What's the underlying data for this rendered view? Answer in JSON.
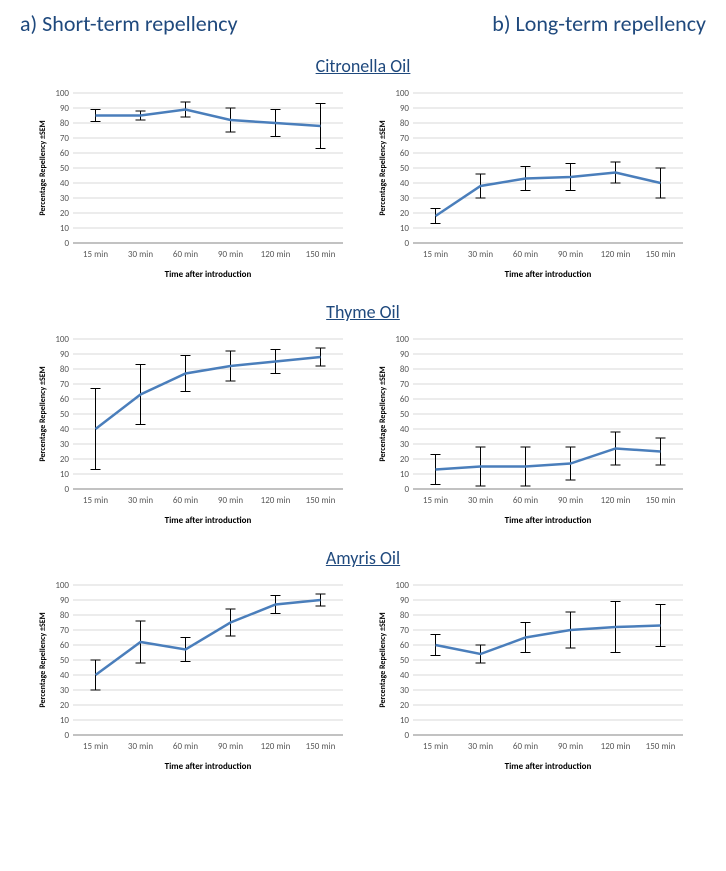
{
  "columns": {
    "a": "a) Short-term repellency",
    "b": "b) Long-term repellency"
  },
  "global": {
    "line_color": "#4a7ebb",
    "xlabel": "Time after introduction",
    "ylabel": "Percentage Repellency  ±SEM",
    "ylim": [
      0,
      100
    ],
    "ytick_step": 10,
    "categories": [
      "15 min",
      "30 min",
      "60 min",
      "90 min",
      "120 min",
      "150 min"
    ],
    "xlabel_fontsize": 9,
    "ylabel_fontsize": 8,
    "tick_fontsize": 9
  },
  "oils": [
    {
      "name": "Citronella Oil",
      "short": {
        "values": [
          85,
          85,
          89,
          82,
          80,
          78
        ],
        "sem": [
          4,
          3,
          5,
          8,
          9,
          15
        ]
      },
      "long": {
        "values": [
          18,
          38,
          43,
          44,
          47,
          40
        ],
        "sem": [
          5,
          8,
          8,
          9,
          7,
          10
        ]
      }
    },
    {
      "name": "Thyme Oil",
      "short": {
        "values": [
          40,
          63,
          77,
          82,
          85,
          88
        ],
        "sem": [
          27,
          20,
          12,
          10,
          8,
          6
        ]
      },
      "long": {
        "values": [
          13,
          15,
          15,
          17,
          27,
          25
        ],
        "sem": [
          10,
          13,
          13,
          11,
          11,
          9
        ]
      }
    },
    {
      "name": "Amyris Oil",
      "short": {
        "values": [
          40,
          62,
          57,
          75,
          87,
          90
        ],
        "sem": [
          10,
          14,
          8,
          9,
          6,
          4
        ]
      },
      "long": {
        "values": [
          60,
          54,
          65,
          70,
          72,
          73
        ],
        "sem": [
          7,
          6,
          10,
          12,
          17,
          14
        ]
      }
    }
  ]
}
